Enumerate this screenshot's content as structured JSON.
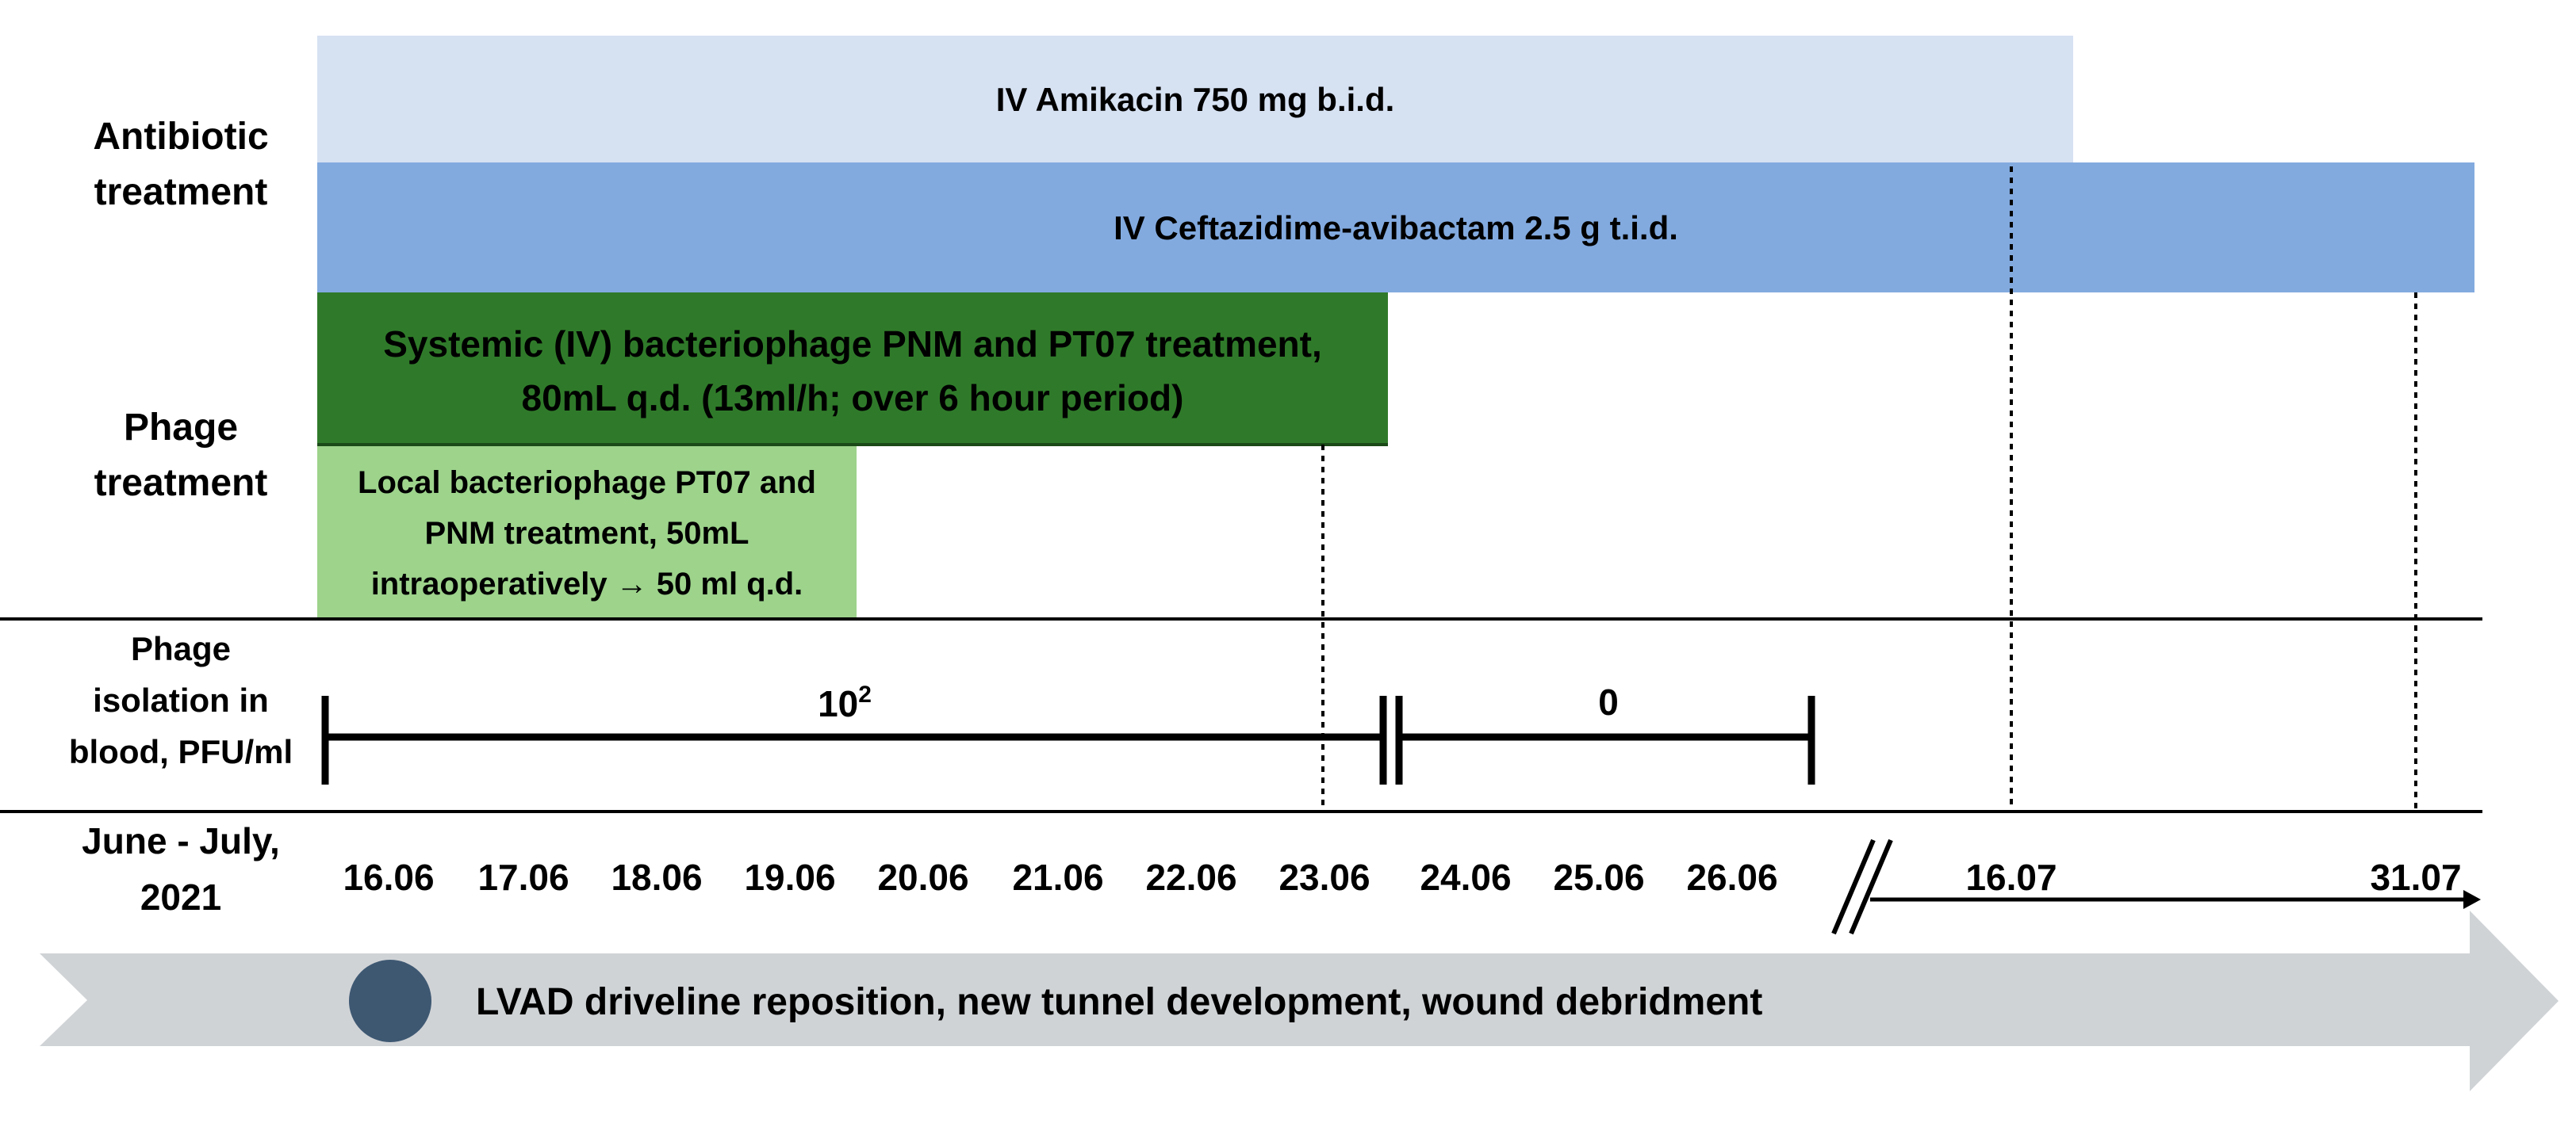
{
  "sections": {
    "antibiotic_label": [
      "Antibiotic",
      "treatment"
    ],
    "phage_label": [
      "Phage",
      "treatment"
    ],
    "isolation_label": [
      "Phage",
      "isolation in",
      "blood, PFU/ml"
    ],
    "date_label": [
      "June - July,",
      "2021"
    ]
  },
  "bars": {
    "amikacin": {
      "label": "IV Amikacin 750 mg b.i.d.",
      "color": "#d6e1f2"
    },
    "ceftazidime": {
      "label": "IV Ceftazidime-avibactam 2.5 g t.i.d.",
      "color": "#82aadf"
    },
    "systemic_phage": {
      "lines": [
        "Systemic (IV) bacteriophage PNM and PT07 treatment,",
        "80mL q.d. (13ml/h; over 6 hour period)"
      ],
      "color": "#2f7a2a"
    },
    "local_phage": {
      "lines": [
        "Local bacteriophage PT07 and",
        "PNM treatment, 50mL",
        "intraoperatively → 50 ml q.d."
      ],
      "color": "#9dd38b"
    }
  },
  "isolation": {
    "first_value": "10",
    "first_value_exp": "2",
    "second_value": "0"
  },
  "dates": [
    "16.06",
    "17.06",
    "18.06",
    "19.06",
    "20.06",
    "21.06",
    "22.06",
    "23.06",
    "24.06",
    "25.06",
    "26.06",
    "16.07",
    "31.07"
  ],
  "procedure": {
    "label": "LVAD driveline reposition, new tunnel development, wound debridment",
    "arrow_color": "#d0d3d6",
    "dot_color": "#3e5872"
  }
}
